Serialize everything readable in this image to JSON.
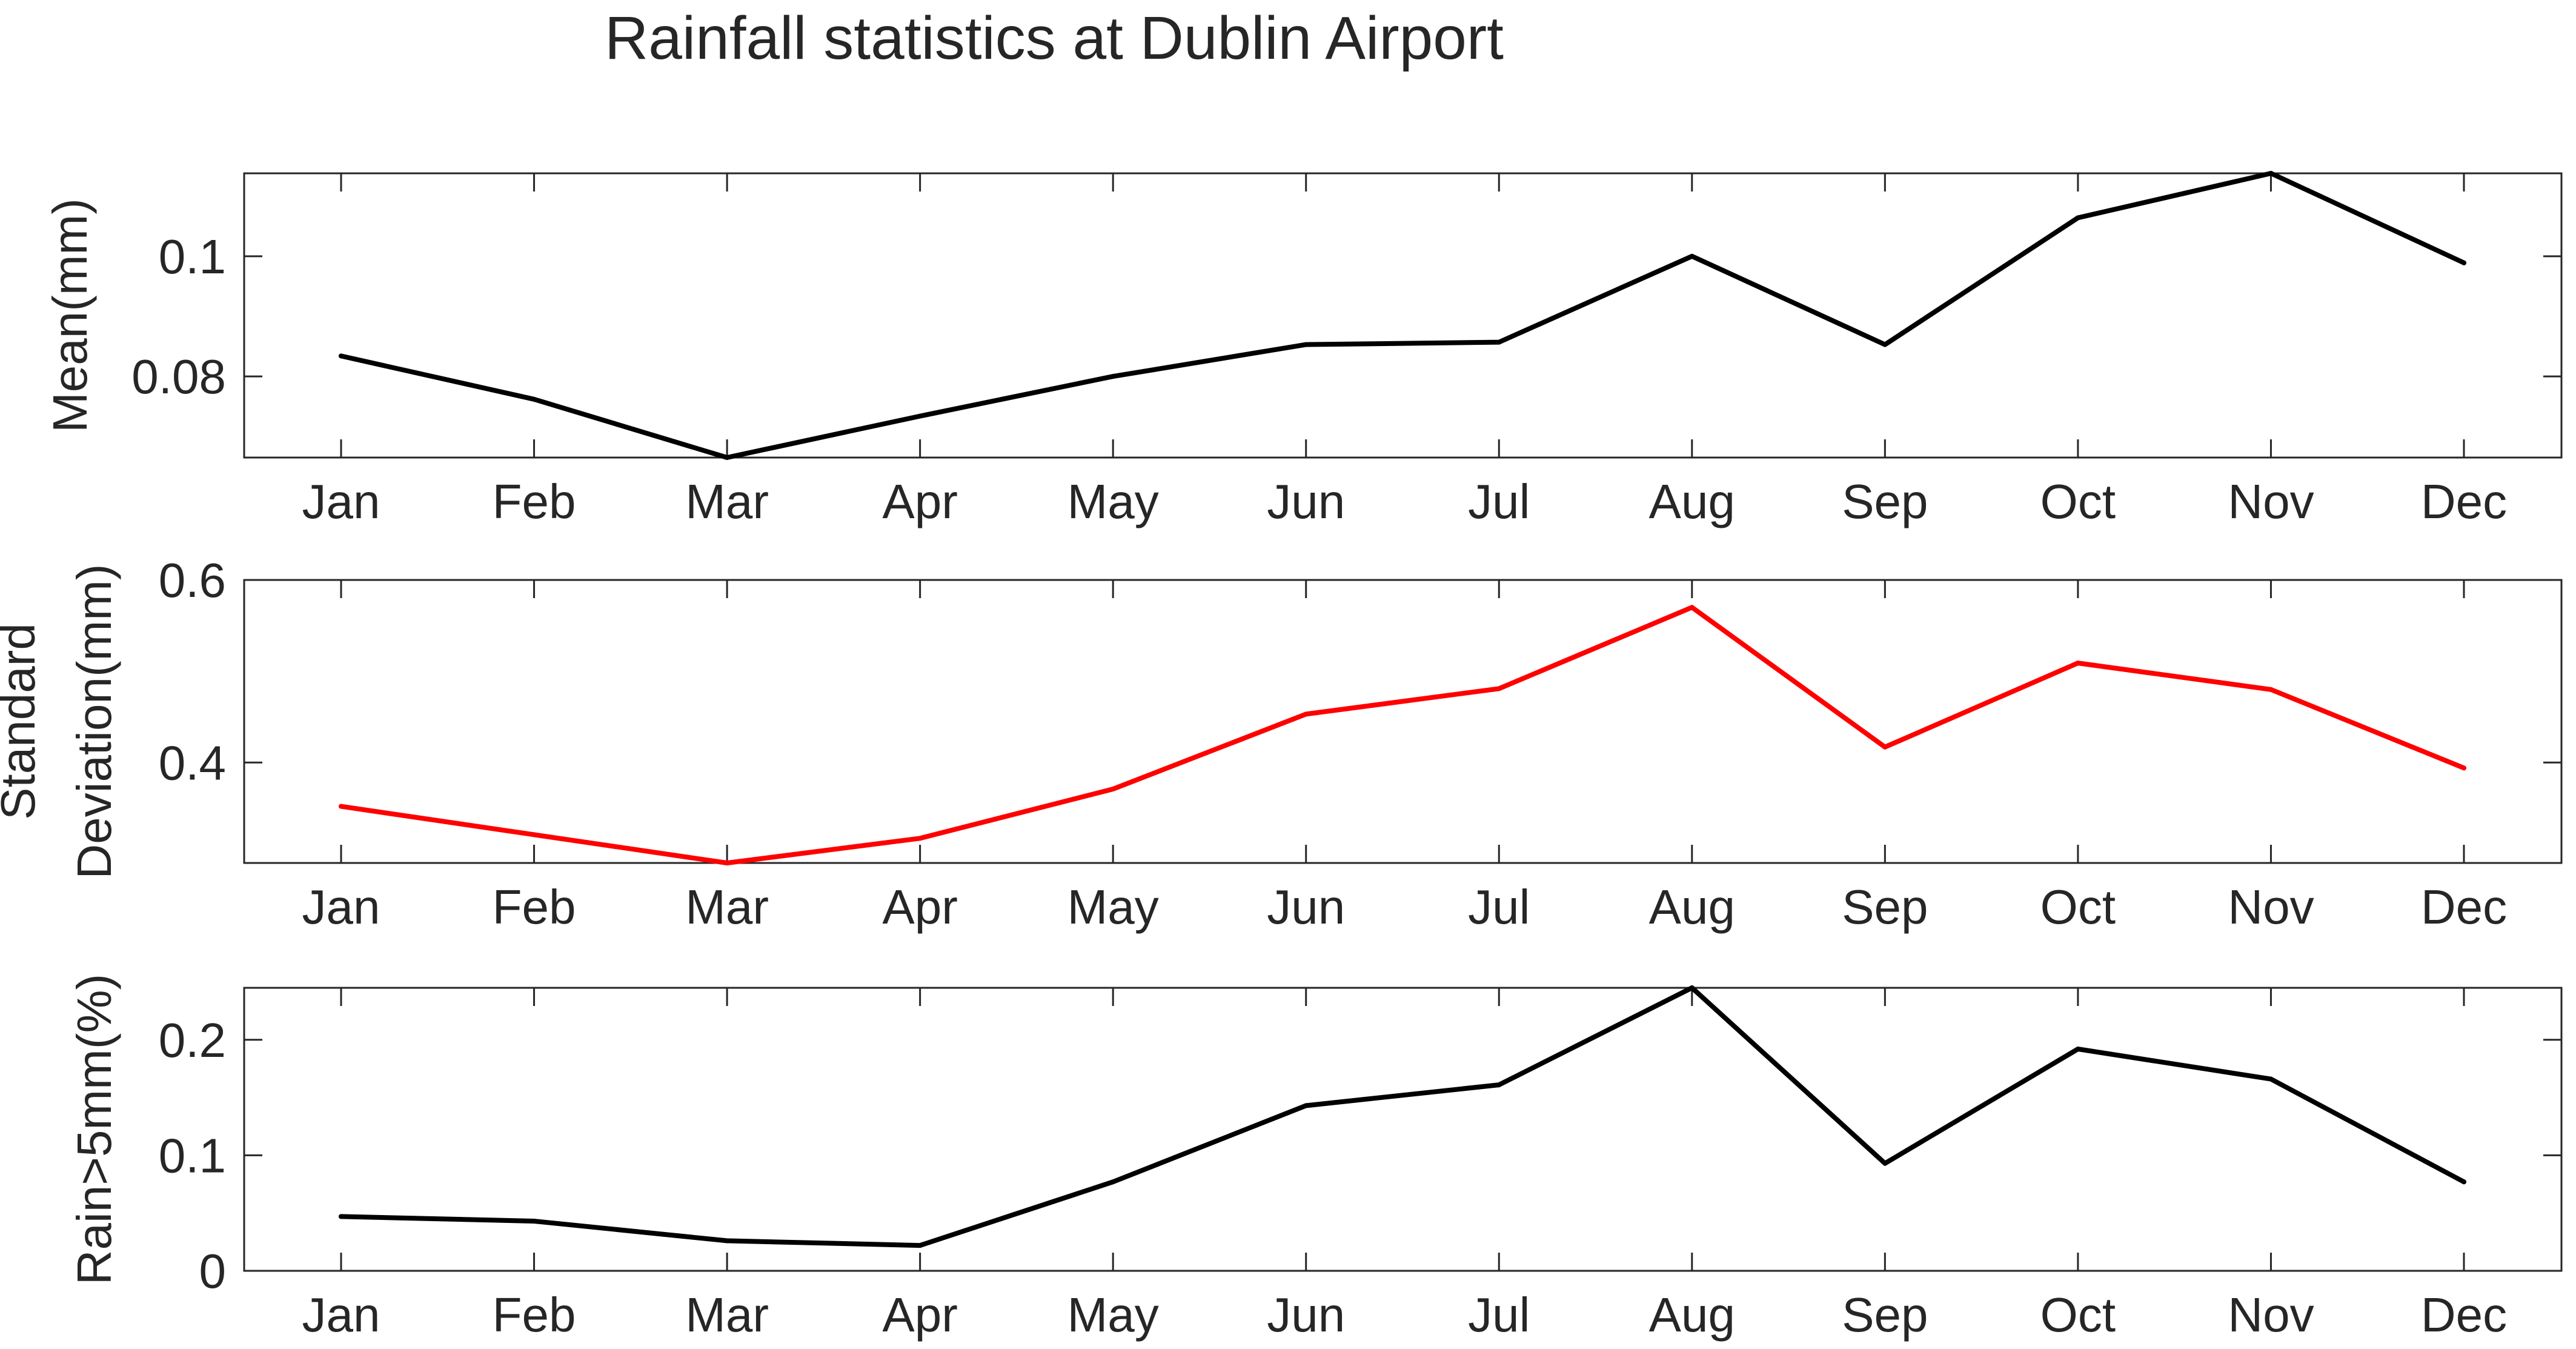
{
  "title": "Rainfall statistics at Dublin Airport",
  "chart_data": [
    {
      "type": "line",
      "categories": [
        "Jan",
        "Feb",
        "Mar",
        "Apr",
        "May",
        "Jun",
        "Jul",
        "Aug",
        "Sep",
        "Oct",
        "Nov",
        "Dec"
      ],
      "ylabel_lines": [
        "Mean(mm)"
      ],
      "ylim": [
        0.0665,
        0.1138
      ],
      "yticks": [
        0.08,
        0.1
      ],
      "ytick_labels": [
        "0.08",
        "0.1"
      ],
      "series": [
        {
          "name": "Mean",
          "color": "#000000",
          "values": [
            0.0834,
            0.0762,
            0.0665,
            0.0734,
            0.08,
            0.0853,
            0.0857,
            0.1,
            0.0853,
            0.1064,
            0.1138,
            0.0989
          ]
        }
      ]
    },
    {
      "type": "line",
      "categories": [
        "Jan",
        "Feb",
        "Mar",
        "Apr",
        "May",
        "Jun",
        "Jul",
        "Aug",
        "Sep",
        "Oct",
        "Nov",
        "Dec"
      ],
      "ylabel_lines": [
        "Standard",
        "Deviation(mm)"
      ],
      "ylim": [
        0.29,
        0.6
      ],
      "yticks": [
        0.4,
        0.6
      ],
      "ytick_labels": [
        "0.4",
        "0.6"
      ],
      "series": [
        {
          "name": "Standard Deviation",
          "color": "#ff0000",
          "values": [
            0.352,
            0.321,
            0.29,
            0.317,
            0.371,
            0.453,
            0.481,
            0.57,
            0.417,
            0.509,
            0.48,
            0.394
          ]
        }
      ]
    },
    {
      "type": "line",
      "categories": [
        "Jan",
        "Feb",
        "Mar",
        "Apr",
        "May",
        "Jun",
        "Jul",
        "Aug",
        "Sep",
        "Oct",
        "Nov",
        "Dec"
      ],
      "ylabel_lines": [
        "Rain>5mm(%)"
      ],
      "ylim": [
        0,
        0.245
      ],
      "yticks": [
        0,
        0.1,
        0.2
      ],
      "ytick_labels": [
        "0",
        "0.1",
        "0.2"
      ],
      "series": [
        {
          "name": "Rain>5mm",
          "color": "#000000",
          "values": [
            0.047,
            0.043,
            0.026,
            0.022,
            0.077,
            0.143,
            0.161,
            0.245,
            0.093,
            0.192,
            0.166,
            0.077
          ]
        }
      ]
    }
  ]
}
